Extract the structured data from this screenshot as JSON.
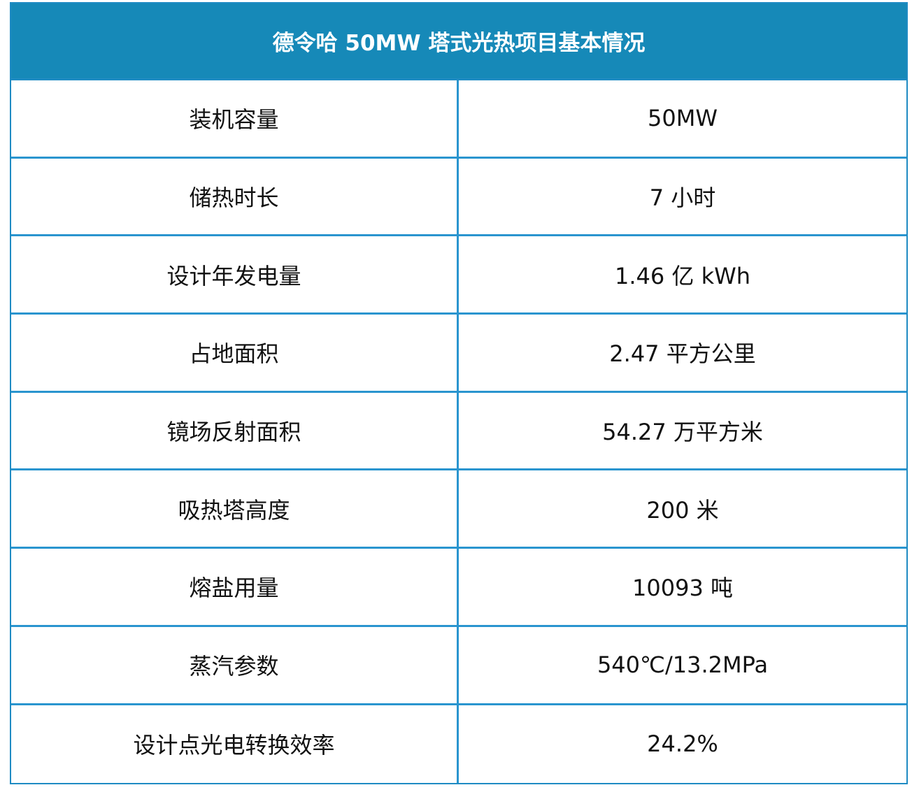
{
  "title": "德令哈 50MW 塔式光热项目基本情况",
  "rows": [
    {
      "label": "装机容量",
      "value": "50MW"
    },
    {
      "label": "储热时长",
      "value": "7 小时"
    },
    {
      "label": "设计年发电量",
      "value": "1.46 亿 kWh"
    },
    {
      "label": "占地面积",
      "value": "2.47 平方公里"
    },
    {
      "label": "镜场反射面积",
      "value": "54.27 万平方米"
    },
    {
      "label": "吸热塔高度",
      "value": "200 米"
    },
    {
      "label": "熔盐用量",
      "value": "10093 吨"
    },
    {
      "label": "蒸汽参数",
      "value": "540℃/13.2MPa"
    },
    {
      "label": "设计点光电转换效率",
      "value": "24.2%"
    }
  ],
  "colors": {
    "header_bg": "#1689b8",
    "header_text": "#ffffff",
    "grid_line": "#2a95cf"
  }
}
